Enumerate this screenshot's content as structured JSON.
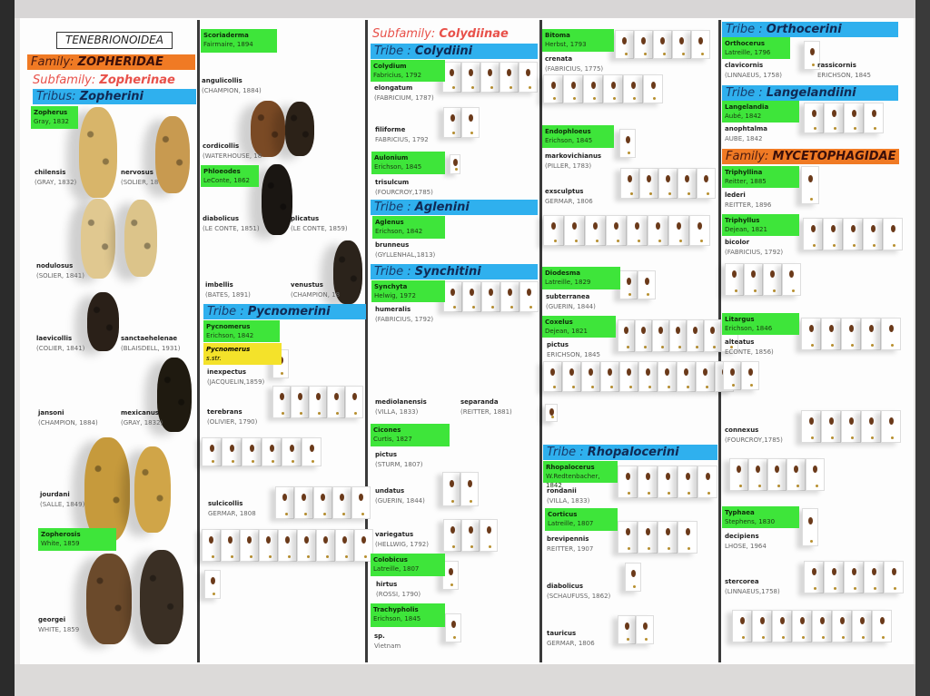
{
  "title": "TENEBRIONOIDEA",
  "families": [
    {
      "prefix": "Family:",
      "name": "ZOPHERIDAE"
    },
    {
      "prefix": "Family:",
      "name": "MYCETOPHAGIDAE"
    }
  ],
  "subfamilies": [
    {
      "prefix": "Subfamily:",
      "name": "Zopherinae"
    },
    {
      "prefix": "Subfamily:",
      "name": "Colydiinae"
    }
  ],
  "tribes": [
    {
      "prefix": "Tribus:",
      "name": "Zopherini"
    },
    {
      "prefix": "Tribe :",
      "name": "Pycnomerini"
    },
    {
      "prefix": "Tribe :",
      "name": "Colydiini"
    },
    {
      "prefix": "Tribe :",
      "name": "Aglenini"
    },
    {
      "prefix": "Tribe :",
      "name": "Synchitini"
    },
    {
      "prefix": "Tribe :",
      "name": "Rhopalocerini"
    },
    {
      "prefix": "Tribe :",
      "name": "Orthocerini"
    },
    {
      "prefix": "Tribe :",
      "name": "Langelandiini"
    }
  ],
  "genera": [
    {
      "name": "Zopherus",
      "author": "Gray, 1832"
    },
    {
      "name": "Zopherosis",
      "author": "White, 1859"
    },
    {
      "name": "Scoriaderma",
      "author": "Fairmaire, 1894"
    },
    {
      "name": "Phloeodes",
      "author": "LeConte, 1862"
    },
    {
      "name": "Pycnomerus",
      "author": "Erichson, 1842"
    },
    {
      "name": "Colydium",
      "author": "Fabricius, 1792"
    },
    {
      "name": "Aulonium",
      "author": "Erichson, 1845"
    },
    {
      "name": "Aglenus",
      "author": "Erichson, 1842"
    },
    {
      "name": "Synchyta",
      "author": "Helwig, 1972"
    },
    {
      "name": "Cicones",
      "author": "Curtis, 1827"
    },
    {
      "name": "Colobicus",
      "author": "Latreille, 1807"
    },
    {
      "name": "Trachypholis",
      "author": "Erichson, 1845"
    },
    {
      "name": "Bitoma",
      "author": "Herbst, 1793"
    },
    {
      "name": "Endophloeus",
      "author": "Erichson, 1845"
    },
    {
      "name": "Diodesma",
      "author": "Latreille, 1829"
    },
    {
      "name": "Coxelus",
      "author": "Dejean, 1821"
    },
    {
      "name": "Rhopalocerus",
      "author": "W.Redtenbacher, 1842"
    },
    {
      "name": "Corticus",
      "author": "Latreille, 1807"
    },
    {
      "name": "Orthocerus",
      "author": "Latreille, 1796"
    },
    {
      "name": "Langelandia",
      "author": "Aubé, 1842"
    },
    {
      "name": "Triphyllina",
      "author": "Reitter, 1885"
    },
    {
      "name": "Triphyllus",
      "author": "Dejean, 1821"
    },
    {
      "name": "Litargus",
      "author": "Erichson, 1846"
    },
    {
      "name": "Typhaea",
      "author": "Stephens, 1830"
    }
  ],
  "subgenus": {
    "name": "Pycnomerus",
    "author": "s.str."
  },
  "species": [
    {
      "name": "chilensis",
      "author": "(GRAY, 1832)"
    },
    {
      "name": "nervosus",
      "author": "(SOLIER, 18"
    },
    {
      "name": "nodulosus",
      "author": "(SOLIER, 1841)"
    },
    {
      "name": "laevicollis",
      "author": "(COLIER, 1841)"
    },
    {
      "name": "sanctaehelenae",
      "author": "(BLAISDELL, 1931)"
    },
    {
      "name": "jansoni",
      "author": "(CHAMPION, 1884)"
    },
    {
      "name": "mexicanus",
      "author": "(GRAY, 1832)"
    },
    {
      "name": "jourdani",
      "author": "(SALLE, 1849)"
    },
    {
      "name": "georgei",
      "author": "WHITE, 1859"
    },
    {
      "name": "angulicollis",
      "author": "(CHAMPION, 1884)"
    },
    {
      "name": "cordicollis",
      "author": "(WATERHOUSE, 18"
    },
    {
      "name": "diabolicus",
      "author": "(LE CONTE, 1851)"
    },
    {
      "name": "plicatus",
      "author": "(LE CONTE, 1859)"
    },
    {
      "name": "imbellis",
      "author": "(BATES, 1891)"
    },
    {
      "name": "venustus",
      "author": "(CHAMPION, 18"
    },
    {
      "name": "inexpectus",
      "author": "(JACQUELIN,1859)"
    },
    {
      "name": "terebrans",
      "author": "(OLIVIER, 1790)"
    },
    {
      "name": "sulcicollis",
      "author": "GERMAR, 1808"
    },
    {
      "name": "elongatum",
      "author": "(FABRICIUM, 1787)"
    },
    {
      "name": "filiforme",
      "author": "FABRICIUS, 1792"
    },
    {
      "name": "trisulcum",
      "author": "(FOURCROY,1785)"
    },
    {
      "name": "brunneus",
      "author": "(GYLLENHAL,1813)"
    },
    {
      "name": "humeralis",
      "author": "(FABRICIUS, 1792)"
    },
    {
      "name": "mediolanensis",
      "author": "(VILLA, 1833)"
    },
    {
      "name": "separanda",
      "author": "(REITTER, 1881)"
    },
    {
      "name": "pictus",
      "author": "(STURM, 1807)"
    },
    {
      "name": "undatus",
      "author": "(GUERIN, 1844)"
    },
    {
      "name": "variegatus",
      "author": "(HELLWIG, 1792)"
    },
    {
      "name": "hirtus",
      "author": "(ROSSI, 1790)"
    },
    {
      "name": "sp.",
      "author": "Vietnam"
    },
    {
      "name": "crenata",
      "author": "(FABRICIUS, 1775)"
    },
    {
      "name": "markovichianus",
      "author": "(PILLER, 1783)"
    },
    {
      "name": "exsculptus",
      "author": "GERMAR, 1806"
    },
    {
      "name": "subterranea",
      "author": "(GUERIN, 1844)"
    },
    {
      "name": "pictus",
      "author": "ERICHSON, 1845"
    },
    {
      "name": "rondanii",
      "author": "(VILLA, 1833)"
    },
    {
      "name": "brevipennis",
      "author": "REITTER, 1907"
    },
    {
      "name": "diabolicus",
      "author": "(SCHAUFUSS, 1862)"
    },
    {
      "name": "tauricus",
      "author": "GERMAR, 1806"
    },
    {
      "name": "clavicornis",
      "author": "(LINNAEUS, 1758)"
    },
    {
      "name": "rassicornis",
      "author": "ERICHSON, 1845"
    },
    {
      "name": "anophtalma",
      "author": "AUBE, 1842"
    },
    {
      "name": "lederi",
      "author": "REITTER, 1896"
    },
    {
      "name": "bicolor",
      "author": "(FABRICIUS, 1792)"
    },
    {
      "name": "alteatus",
      "author": "ECONTE, 1856)"
    },
    {
      "name": "connexus",
      "author": "(FOURCROY,1785)"
    },
    {
      "name": "decipiens",
      "author": "LHOSE, 1964"
    },
    {
      "name": "stercorea",
      "author": "(LINNAEUS,1758)"
    }
  ],
  "colors": {
    "family_bar": "#f07a24",
    "tribe_bar": "#2fb0ee",
    "genus_label": "#3ee53a",
    "subgenus_label": "#f4e22a",
    "subfamily_text": "#e8514a"
  }
}
